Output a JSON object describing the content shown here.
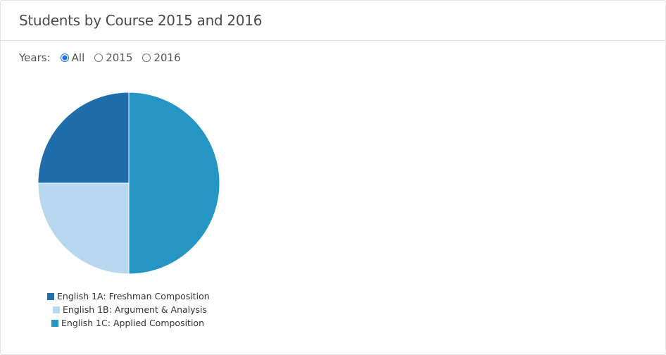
{
  "header": {
    "title": "Students by Course 2015 and 2016"
  },
  "filter": {
    "label": "Years:",
    "options": [
      {
        "label": "All",
        "selected": true
      },
      {
        "label": "2015",
        "selected": false
      },
      {
        "label": "2016",
        "selected": false
      }
    ]
  },
  "chart_data": {
    "type": "pie",
    "title": "Students by Course 2015 and 2016",
    "categories": [
      "English 1A: Freshman Composition",
      "English 1B: Argument & Analysis",
      "English 1C: Applied Composition"
    ],
    "values": [
      25,
      25,
      50
    ],
    "colors": [
      "#1f6eab",
      "#b8d8f0",
      "#2596c4"
    ],
    "legend": "bottom"
  }
}
